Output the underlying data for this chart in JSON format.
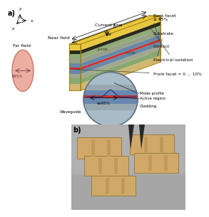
{
  "panel_a_label": "a)",
  "panel_b_label": "b)",
  "labels": {
    "current_flow": "Current flow",
    "back_facet": "Back facet\n≥ 95%",
    "substrate": "Substrate",
    "contact": "Contact",
    "elec_iso": "Electrical isolation",
    "front_facet": "Front facet = 0 … 10%",
    "mode_profile": "Mode profile",
    "active_region": "Active region",
    "waveguide": "Waveguide",
    "cladding": "Cladding",
    "near_field": "Near field",
    "far_field": "Far field",
    "w": "w",
    "L": "L",
    "w95": "wₕ95%",
    "theta95": "θ95%"
  },
  "colors": {
    "gold_top": "#e8c840",
    "gold_side": "#c8a010",
    "gold_edge": "#a07800",
    "substrate_tan": "#d0b870",
    "layer_dark": "#2a2a1a",
    "layer_green_light": "#90aa78",
    "layer_gray": "#98a088",
    "layer_blue": "#6888a8",
    "layer_red": "#c83030",
    "layer_blue2": "#7090b0",
    "layer_gray2": "#a0a890",
    "layer_green2": "#88a870",
    "ellipse_fill": "#e8a090",
    "ellipse_edge": "#c06858",
    "inset_bg": "#a8bcc8",
    "inset_blue": "#6888b0",
    "inset_gray": "#98a8b0",
    "inset_red": "#c83030",
    "photo_bg1": "#aaaaaa",
    "photo_bg2": "#888888",
    "chip_tan": "#d0a868",
    "chip_line": "#c09858",
    "chip_edge": "#907838",
    "tweezer": "#282828"
  }
}
